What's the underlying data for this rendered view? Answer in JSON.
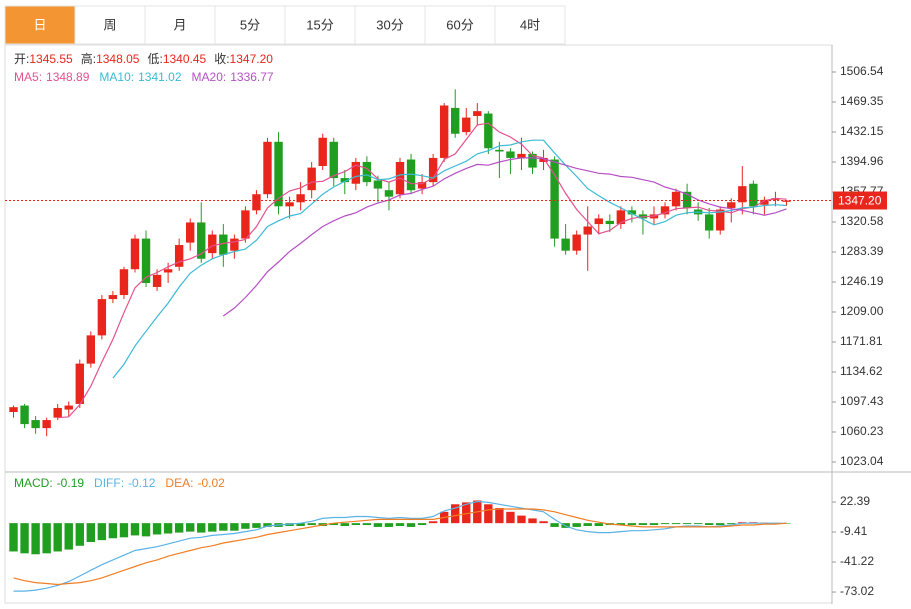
{
  "tabs": [
    "日",
    "周",
    "月",
    "5分",
    "15分",
    "30分",
    "60分",
    "4时"
  ],
  "active_tab": 0,
  "chart_data": [
    {
      "type": "candlestick",
      "sep": ":",
      "last_labels": [
        "开:",
        "高:",
        "低:",
        "收:"
      ],
      "close_label": "1347.20",
      "up_color": "#e8261c",
      "down_color": "#1f9e1f",
      "ylim": [
        1013.1,
        1540.0
      ],
      "yticks": [
        1023.04,
        1060.23,
        1097.43,
        1134.62,
        {
          "value": 1171.81,
          "label": "1171.81"
        },
        {
          "value": 1209,
          "label": "1209.00"
        },
        1246.19,
        1283.39,
        1320.58,
        1357.77,
        1394.96,
        1432.15,
        1469.35,
        1506.54
      ],
      "open": [
        1085,
        1093,
        1075,
        1065,
        1078,
        1088,
        1095,
        1145,
        1180,
        1225,
        1230,
        1262,
        1300,
        1240,
        1258,
        1265,
        1295,
        1320,
        1282,
        1305,
        1285,
        1300,
        1335,
        1355,
        1420,
        1340,
        1345,
        1360,
        1390,
        1420,
        1375,
        1368,
        1395,
        1372,
        1360,
        1355,
        1398,
        1362,
        1370,
        1400,
        1462,
        1432,
        1452,
        1455,
        1410,
        1408,
        1400,
        1405,
        1395,
        1398,
        1300,
        1285,
        1305,
        1318,
        1322,
        1318,
        1335,
        1330,
        1325,
        1330,
        1340,
        1358,
        1336,
        1330,
        1310,
        1338,
        1345,
        1368,
        1342,
        1348,
        1345.55
      ],
      "high": [
        1093,
        1095,
        1080,
        1078,
        1095,
        1098,
        1150,
        1185,
        1230,
        1235,
        1265,
        1305,
        1310,
        1262,
        1270,
        1300,
        1325,
        1345,
        1310,
        1318,
        1305,
        1340,
        1360,
        1425,
        1432,
        1352,
        1370,
        1395,
        1430,
        1425,
        1385,
        1400,
        1402,
        1378,
        1370,
        1400,
        1405,
        1380,
        1405,
        1468,
        1485,
        1462,
        1468,
        1458,
        1420,
        1412,
        1425,
        1408,
        1410,
        1402,
        1318,
        1310,
        1340,
        1330,
        1330,
        1340,
        1340,
        1335,
        1340,
        1345,
        1362,
        1368,
        1345,
        1338,
        1340,
        1350,
        1390,
        1372,
        1352,
        1358,
        1348.05
      ],
      "low": [
        1078,
        1065,
        1058,
        1055,
        1075,
        1080,
        1090,
        1140,
        1175,
        1220,
        1225,
        1258,
        1240,
        1235,
        1245,
        1260,
        1285,
        1270,
        1275,
        1265,
        1275,
        1295,
        1330,
        1350,
        1330,
        1325,
        1335,
        1350,
        1385,
        1365,
        1355,
        1360,
        1365,
        1345,
        1335,
        1350,
        1355,
        1355,
        1365,
        1395,
        1425,
        1428,
        1440,
        1405,
        1375,
        1380,
        1385,
        1380,
        1385,
        1290,
        1280,
        1280,
        1260,
        1305,
        1308,
        1312,
        1320,
        1305,
        1318,
        1325,
        1335,
        1330,
        1322,
        1300,
        1305,
        1320,
        1330,
        1330,
        1330,
        1340,
        1340.45
      ],
      "close": [
        1091,
        1070,
        1065,
        1075,
        1090,
        1093,
        1145,
        1180,
        1225,
        1230,
        1262,
        1300,
        1245,
        1255,
        1262,
        1292,
        1320,
        1275,
        1305,
        1280,
        1300,
        1335,
        1355,
        1420,
        1340,
        1345,
        1355,
        1388,
        1425,
        1375,
        1370,
        1395,
        1370,
        1362,
        1352,
        1395,
        1360,
        1370,
        1400,
        1465,
        1430,
        1450,
        1458,
        1412,
        1408,
        1400,
        1405,
        1388,
        1400,
        1300,
        1285,
        1305,
        1315,
        1325,
        1318,
        1335,
        1330,
        1325,
        1330,
        1340,
        1358,
        1338,
        1330,
        1310,
        1336,
        1345,
        1365,
        1340,
        1348,
        1350,
        1347.2
      ],
      "series": [
        {
          "name": "MA5",
          "color": "#e5508f",
          "values": [
            null,
            null,
            null,
            null,
            1078,
            1079,
            1094,
            1117,
            1147,
            1175,
            1208,
            1239,
            1252,
            1258,
            1265,
            1271,
            1275,
            1281,
            1291,
            1294,
            1296,
            1299,
            1315,
            1338,
            1350,
            1359,
            1363,
            1370,
            1371,
            1378,
            1383,
            1391,
            1387,
            1374,
            1370,
            1375,
            1368,
            1368,
            1375,
            1398,
            1405,
            1423,
            1441,
            1443,
            1432,
            1426,
            1417,
            1403,
            1400,
            1379,
            1356,
            1336,
            1321,
            1306,
            1310,
            1320,
            1325,
            1327,
            1328,
            1332,
            1337,
            1338,
            1339,
            1335,
            1334,
            1332,
            1337,
            1339,
            1347,
            1350,
            1348.89
          ]
        },
        {
          "name": "MA10",
          "color": "#3bbad4",
          "values": [
            null,
            null,
            null,
            null,
            null,
            null,
            null,
            null,
            null,
            1127,
            1144,
            1167,
            1185,
            1203,
            1220,
            1240,
            1257,
            1267,
            1275,
            1280,
            1284,
            1287,
            1298,
            1315,
            1322,
            1328,
            1331,
            1343,
            1355,
            1364,
            1371,
            1377,
            1379,
            1373,
            1374,
            1379,
            1380,
            1378,
            1375,
            1384,
            1390,
            1396,
            1405,
            1409,
            1415,
            1416,
            1420,
            1422,
            1422,
            1406,
            1391,
            1377,
            1362,
            1353,
            1345,
            1338,
            1331,
            1324,
            1317,
            1321,
            1329,
            1332,
            1333,
            1332,
            1333,
            1335,
            1338,
            1339,
            1341,
            1342,
            1341.02
          ]
        },
        {
          "name": "MA20",
          "color": "#b550c4",
          "values": [
            null,
            null,
            null,
            null,
            null,
            null,
            null,
            null,
            null,
            null,
            null,
            null,
            null,
            null,
            null,
            null,
            null,
            null,
            null,
            1204,
            1214,
            1227,
            1242,
            1259,
            1271,
            1284,
            1294,
            1305,
            1315,
            1322,
            1328,
            1332,
            1339,
            1344,
            1348,
            1354,
            1356,
            1361,
            1365,
            1374,
            1381,
            1387,
            1392,
            1391,
            1395,
            1398,
            1400,
            1400,
            1399,
            1395,
            1391,
            1387,
            1384,
            1381,
            1380,
            1377,
            1376,
            1373,
            1370,
            1364,
            1360,
            1355,
            1348,
            1343,
            1339,
            1337,
            1335,
            1332,
            1329,
            1332,
            1336.77
          ]
        }
      ]
    },
    {
      "type": "macd",
      "ylim": [
        -85.7,
        52.1
      ],
      "yticks": [
        22.39,
        -9.41,
        -41.22,
        -73.02
      ],
      "up_color": "#e8261c",
      "down_color": "#1f9e1f",
      "sep": ":",
      "hist": {
        "name": "MACD",
        "color": "#1f9e1f",
        "values": [
          -30,
          -32,
          -33,
          -32,
          -30,
          -28,
          -24,
          -20,
          -18,
          -16,
          -15,
          -13,
          -14,
          -12,
          -11,
          -10,
          -9,
          -10,
          -9,
          -8,
          -8,
          -6,
          -5,
          -4,
          -4,
          -3,
          -3,
          -2,
          -3,
          -2,
          -3,
          -2,
          -2,
          -4,
          -4,
          -3,
          -4,
          -2,
          2,
          12,
          20,
          22,
          24,
          20,
          16,
          12,
          8,
          5,
          2,
          -4,
          -5,
          -4,
          -3,
          -3,
          -2,
          -2,
          -2,
          -2,
          -2,
          -1,
          -1,
          -1,
          -1,
          -2,
          -2,
          -1,
          1,
          1,
          0.5,
          0.3,
          -0.19
        ]
      },
      "series": [
        {
          "name": "DIFF",
          "color": "#5ab3e6",
          "values": [
            -72,
            -72,
            -71,
            -69,
            -66,
            -62,
            -56,
            -50,
            -44,
            -39,
            -34,
            -29,
            -27,
            -25,
            -22,
            -19,
            -16,
            -15,
            -13,
            -12,
            -11,
            -9,
            -7,
            -3,
            -2,
            -1,
            0,
            2,
            5,
            6,
            6,
            7,
            7,
            6,
            5,
            6,
            5,
            5,
            7,
            13,
            16,
            20,
            23,
            22,
            20,
            18,
            16,
            14,
            12,
            4,
            -3,
            -7,
            -9,
            -10,
            -10,
            -9,
            -8,
            -8,
            -7,
            -6,
            -4,
            -3,
            -3,
            -4,
            -3,
            -2,
            0,
            0,
            0,
            0,
            -0.12
          ]
        },
        {
          "name": "DEA",
          "color": "#f07e24",
          "values": [
            -58,
            -61,
            -63,
            -64,
            -65,
            -64,
            -63,
            -61,
            -58,
            -54,
            -50,
            -46,
            -42,
            -39,
            -35,
            -32,
            -29,
            -26,
            -24,
            -21,
            -19,
            -17,
            -15,
            -12,
            -10,
            -8,
            -6,
            -4,
            -2,
            0,
            1,
            2,
            3,
            4,
            4,
            4,
            4,
            4,
            4,
            6,
            8,
            10,
            12,
            14,
            15,
            15,
            15,
            15,
            14,
            12,
            9,
            6,
            3,
            1,
            -1,
            -2,
            -3,
            -4,
            -4,
            -4,
            -4,
            -4,
            -4,
            -4,
            -4,
            -3,
            -2,
            -2,
            -1,
            -1,
            -0.02
          ]
        }
      ]
    }
  ]
}
